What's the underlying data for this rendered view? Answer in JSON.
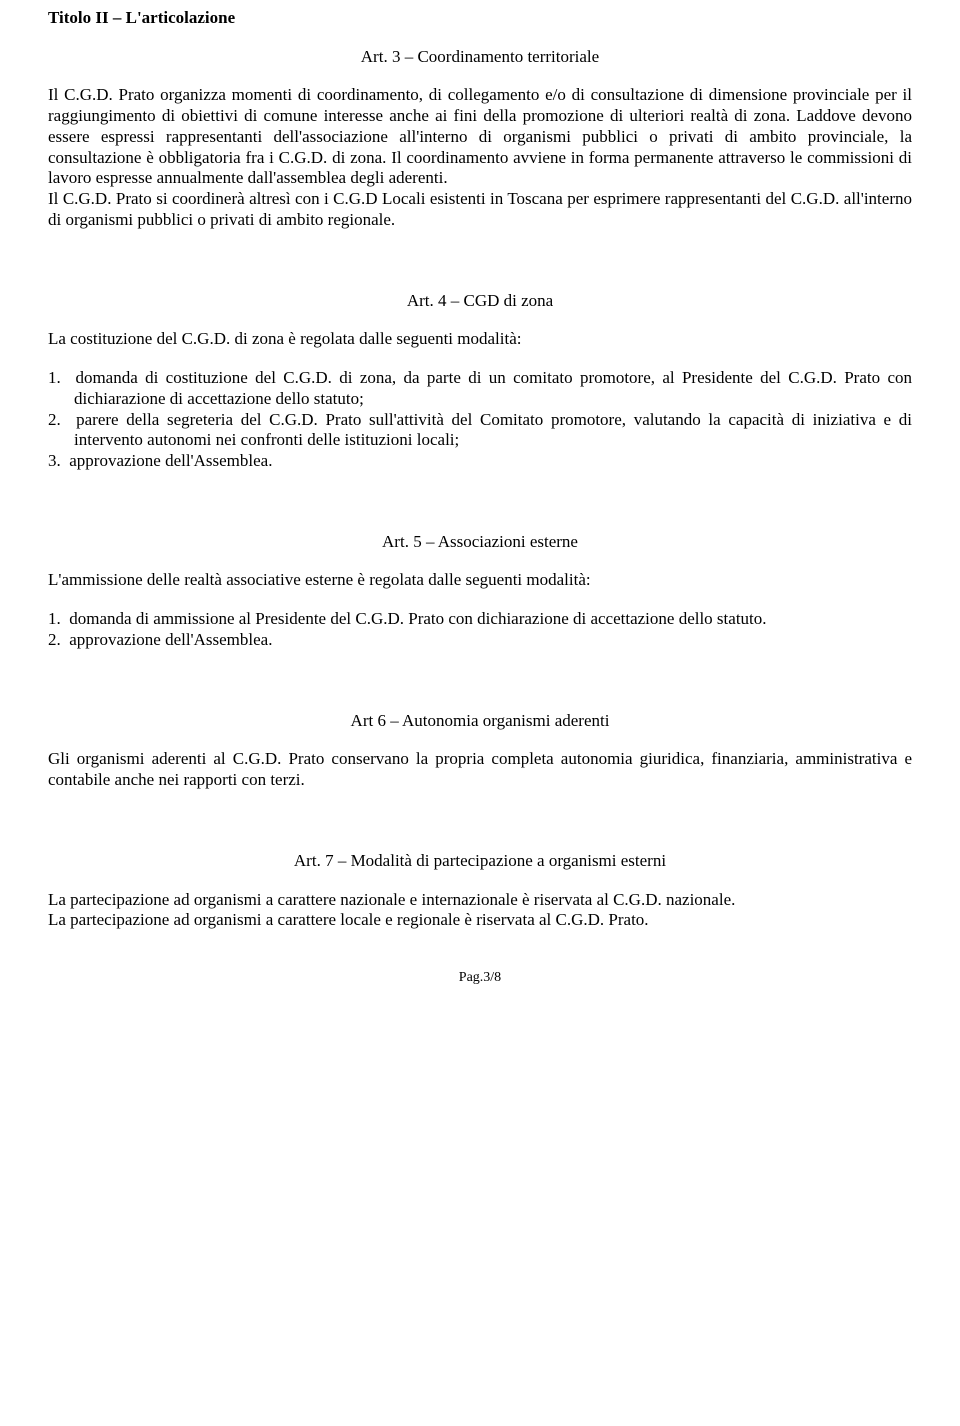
{
  "title": "Titolo II – L'articolazione",
  "art3": {
    "heading": "Art. 3 – Coordinamento territoriale",
    "p1": "Il C.G.D. Prato organizza momenti di coordinamento, di collegamento e/o di consultazione di dimensione provinciale per il raggiungimento di obiettivi di comune interesse anche ai fini della promozione di ulteriori realtà di zona. Laddove devono essere espressi rappresentanti dell'associazione all'interno di organismi pubblici o privati di ambito provinciale, la consultazione è obbligatoria fra i C.G.D. di zona. Il coordinamento avviene in forma permanente attraverso le commissioni di lavoro espresse annualmente dall'assemblea degli aderenti.",
    "p2": "Il C.G.D. Prato si coordinerà altresì con i C.G.D Locali esistenti in Toscana per esprimere rappresentanti del C.G.D. all'interno di organismi pubblici o privati di ambito regionale."
  },
  "art4": {
    "heading": "Art. 4 – CGD di zona",
    "intro": "La costituzione del C.G.D. di zona è regolata dalle seguenti modalità:",
    "items": [
      "domanda di costituzione del C.G.D. di zona, da parte di un comitato promotore, al Presidente del C.G.D. Prato con dichiarazione di accettazione dello statuto;",
      "parere della segreteria del C.G.D. Prato sull'attività del Comitato promotore, valutando la capacità di iniziativa e di intervento autonomi nei confronti delle istituzioni locali;",
      "approvazione dell'Assemblea."
    ]
  },
  "art5": {
    "heading": "Art. 5 – Associazioni esterne",
    "intro": "L'ammissione delle realtà associative esterne è regolata dalle seguenti modalità:",
    "items": [
      "domanda di ammissione al Presidente del C.G.D. Prato con dichiarazione di accettazione dello statuto.",
      "approvazione dell'Assemblea."
    ]
  },
  "art6": {
    "heading": "Art 6 – Autonomia organismi aderenti",
    "p1": "Gli organismi aderenti al C.G.D. Prato conservano la propria completa autonomia giuridica, finanziaria, amministrativa e contabile anche nei rapporti con terzi."
  },
  "art7": {
    "heading": "Art. 7 – Modalità di partecipazione a organismi esterni",
    "p1": "La partecipazione ad organismi a carattere nazionale e internazionale è riservata al C.G.D. nazionale.",
    "p2": "La partecipazione ad organismi a carattere locale e regionale è riservata al C.G.D. Prato."
  },
  "footer": "Pag.3/8"
}
